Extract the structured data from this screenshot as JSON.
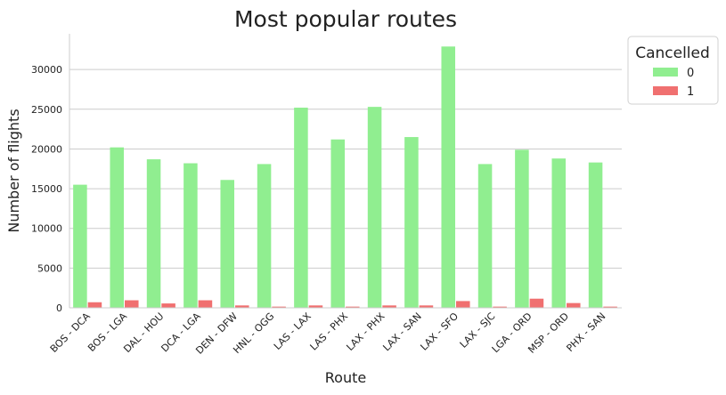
{
  "chart_data": {
    "type": "bar",
    "title": "Most popular routes",
    "xlabel": "Route",
    "ylabel": "Number of flights",
    "ylim": [
      0,
      34500
    ],
    "yticks": [
      0,
      5000,
      10000,
      15000,
      20000,
      25000,
      30000
    ],
    "grid": "horizontal",
    "legend": {
      "title": "Cancelled",
      "placement": "top-right, outside"
    },
    "categories": [
      "BOS - DCA",
      "BOS - LGA",
      "DAL - HOU",
      "DCA - LGA",
      "DEN - DFW",
      "HNL - OGG",
      "LAS - LAX",
      "LAS - PHX",
      "LAX - PHX",
      "LAX - SAN",
      "LAX - SFO",
      "LAX - SJC",
      "LGA - ORD",
      "MSP - ORD",
      "PHX - SAN"
    ],
    "series": [
      {
        "name": "0",
        "color": "#90ee90",
        "values": [
          15500,
          20200,
          18700,
          18200,
          16100,
          18100,
          25200,
          21200,
          25300,
          21500,
          32900,
          18100,
          19900,
          18800,
          18300
        ]
      },
      {
        "name": "1",
        "color": "#f07070",
        "values": [
          700,
          950,
          550,
          950,
          300,
          150,
          300,
          150,
          300,
          300,
          850,
          150,
          1150,
          600,
          150
        ]
      }
    ]
  }
}
